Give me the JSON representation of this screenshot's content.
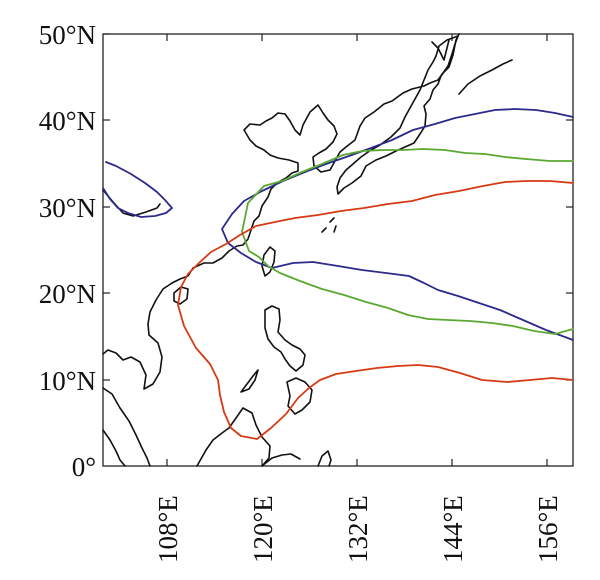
{
  "map": {
    "lat_labels": [
      "50°N",
      "40°N",
      "30°N",
      "20°N",
      "10°N",
      "0°"
    ],
    "lon_labels": [
      "108°E",
      "120°E",
      "132°E",
      "144°E",
      "156°E"
    ],
    "extent": {
      "lon_min": 101,
      "lon_max": 160,
      "lat_min": 0,
      "lat_max": 50
    },
    "contour_colors": {
      "blue": "#2c2a8c",
      "green": "#5aa832",
      "red": "#d63a14"
    },
    "coastline_color": "#111111"
  }
}
